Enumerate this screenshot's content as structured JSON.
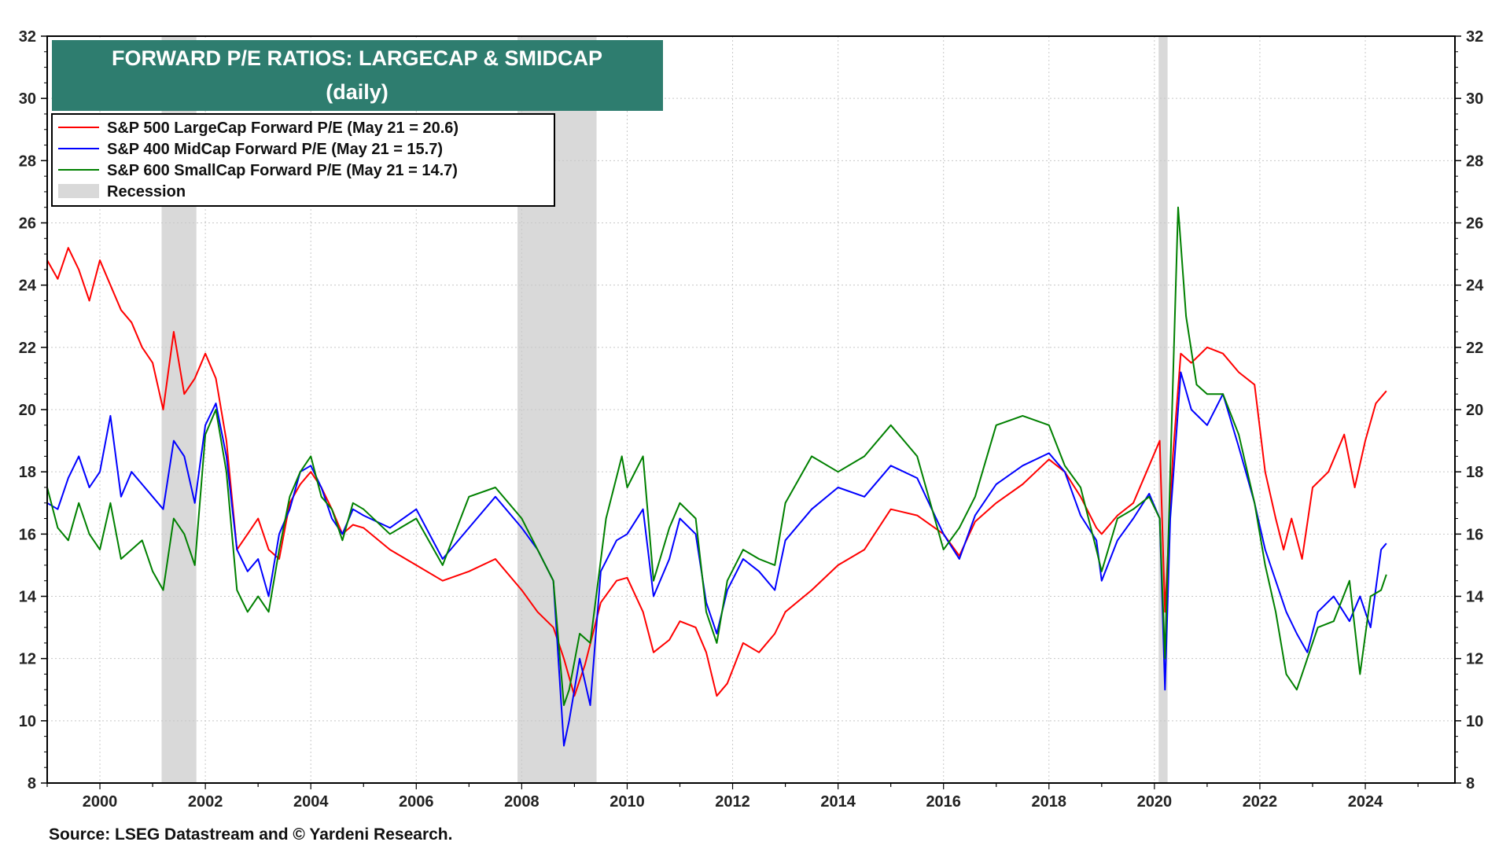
{
  "chart_data": {
    "type": "line",
    "title": "FORWARD P/E RATIOS: LARGECAP & SMIDCAP",
    "subtitle": "(daily)",
    "source": "Source: LSEG Datastream and © Yardeni Research.",
    "xlim": [
      1999.0,
      2025.7
    ],
    "ylim": [
      8,
      32
    ],
    "grid": true,
    "legend_position": "top-left",
    "y_ticks": [
      8,
      10,
      12,
      14,
      16,
      18,
      20,
      22,
      24,
      26,
      28,
      30,
      32
    ],
    "x_ticks": [
      2000,
      2002,
      2004,
      2006,
      2008,
      2010,
      2012,
      2014,
      2016,
      2018,
      2020,
      2022,
      2024
    ],
    "x_tick_labels": [
      "2000",
      "2002",
      "2004",
      "2006",
      "2008",
      "2010",
      "2012",
      "2014",
      "2016",
      "2018",
      "2020",
      "2022",
      "2024"
    ],
    "title_bg_color": "#2e7d6f",
    "recessions": [
      {
        "start": 2001.17,
        "end": 2001.83
      },
      {
        "start": 2007.92,
        "end": 2009.42
      },
      {
        "start": 2020.08,
        "end": 2020.25
      }
    ],
    "recession_color": "#d9d9d9",
    "legend": [
      {
        "label": "S&P 500 LargeCap Forward P/E (May 21 = 20.6)",
        "color": "#ff0000",
        "kind": "line"
      },
      {
        "label": "S&P 400 MidCap Forward P/E (May 21 = 15.7)",
        "color": "#0000ff",
        "kind": "line"
      },
      {
        "label": "S&P 600 SmallCap Forward P/E (May 21 = 14.7)",
        "color": "#008000",
        "kind": "line"
      },
      {
        "label": "Recession",
        "color": "#d9d9d9",
        "kind": "box"
      }
    ],
    "series": [
      {
        "name": "S&P 500 LargeCap Forward P/E",
        "color": "#ff0000",
        "x": [
          1999.0,
          1999.2,
          1999.4,
          1999.6,
          1999.8,
          2000.0,
          2000.2,
          2000.4,
          2000.6,
          2000.8,
          2001.0,
          2001.2,
          2001.4,
          2001.6,
          2001.8,
          2002.0,
          2002.2,
          2002.4,
          2002.6,
          2002.8,
          2003.0,
          2003.2,
          2003.4,
          2003.6,
          2003.8,
          2004.0,
          2004.2,
          2004.4,
          2004.6,
          2004.8,
          2005.0,
          2005.5,
          2006.0,
          2006.5,
          2007.0,
          2007.5,
          2008.0,
          2008.3,
          2008.6,
          2008.8,
          2009.0,
          2009.2,
          2009.5,
          2009.8,
          2010.0,
          2010.3,
          2010.5,
          2010.8,
          2011.0,
          2011.3,
          2011.5,
          2011.7,
          2011.9,
          2012.2,
          2012.5,
          2012.8,
          2013.0,
          2013.5,
          2014.0,
          2014.5,
          2015.0,
          2015.5,
          2016.0,
          2016.3,
          2016.6,
          2017.0,
          2017.5,
          2018.0,
          2018.3,
          2018.6,
          2018.9,
          2019.0,
          2019.3,
          2019.6,
          2019.9,
          2020.1,
          2020.2,
          2020.35,
          2020.5,
          2020.7,
          2021.0,
          2021.3,
          2021.6,
          2021.9,
          2022.1,
          2022.3,
          2022.45,
          2022.6,
          2022.8,
          2023.0,
          2023.3,
          2023.6,
          2023.8,
          2024.0,
          2024.2,
          2024.4
        ],
        "values": [
          24.8,
          24.2,
          25.2,
          24.5,
          23.5,
          24.8,
          24.0,
          23.2,
          22.8,
          22.0,
          21.5,
          20.0,
          22.5,
          20.5,
          21.0,
          21.8,
          21.0,
          19.0,
          15.5,
          16.0,
          16.5,
          15.5,
          15.2,
          17.0,
          17.6,
          18.0,
          17.5,
          16.8,
          16.0,
          16.3,
          16.2,
          15.5,
          15.0,
          14.5,
          14.8,
          15.2,
          14.2,
          13.5,
          13.0,
          12.0,
          10.8,
          11.8,
          13.8,
          14.5,
          14.6,
          13.5,
          12.2,
          12.6,
          13.2,
          13.0,
          12.2,
          10.8,
          11.2,
          12.5,
          12.2,
          12.8,
          13.5,
          14.2,
          15.0,
          15.5,
          16.8,
          16.6,
          16.0,
          15.3,
          16.4,
          17.0,
          17.6,
          18.4,
          18.0,
          17.2,
          16.2,
          16.0,
          16.6,
          17.0,
          18.2,
          19.0,
          13.5,
          18.5,
          21.8,
          21.5,
          22.0,
          21.8,
          21.2,
          20.8,
          18.0,
          16.5,
          15.5,
          16.5,
          15.2,
          17.5,
          18.0,
          19.2,
          17.5,
          19.0,
          20.2,
          20.6
        ]
      },
      {
        "name": "S&P 400 MidCap Forward P/E",
        "color": "#0000ff",
        "x": [
          1999.0,
          1999.2,
          1999.4,
          1999.6,
          1999.8,
          2000.0,
          2000.2,
          2000.4,
          2000.6,
          2000.8,
          2001.0,
          2001.2,
          2001.4,
          2001.6,
          2001.8,
          2002.0,
          2002.2,
          2002.4,
          2002.6,
          2002.8,
          2003.0,
          2003.2,
          2003.4,
          2003.6,
          2003.8,
          2004.0,
          2004.2,
          2004.4,
          2004.6,
          2004.8,
          2005.0,
          2005.5,
          2006.0,
          2006.5,
          2007.0,
          2007.5,
          2008.0,
          2008.3,
          2008.6,
          2008.8,
          2008.9,
          2009.1,
          2009.3,
          2009.5,
          2009.8,
          2010.0,
          2010.3,
          2010.5,
          2010.8,
          2011.0,
          2011.3,
          2011.5,
          2011.7,
          2011.9,
          2012.2,
          2012.5,
          2012.8,
          2013.0,
          2013.5,
          2014.0,
          2014.5,
          2015.0,
          2015.5,
          2016.0,
          2016.3,
          2016.6,
          2017.0,
          2017.5,
          2018.0,
          2018.3,
          2018.6,
          2018.9,
          2019.0,
          2019.3,
          2019.6,
          2019.9,
          2020.1,
          2020.2,
          2020.3,
          2020.5,
          2020.7,
          2021.0,
          2021.3,
          2021.6,
          2021.9,
          2022.1,
          2022.3,
          2022.5,
          2022.7,
          2022.9,
          2023.1,
          2023.4,
          2023.7,
          2023.9,
          2024.1,
          2024.3,
          2024.4
        ],
        "values": [
          17.0,
          16.8,
          17.8,
          18.5,
          17.5,
          18.0,
          19.8,
          17.2,
          18.0,
          17.6,
          17.2,
          16.8,
          19.0,
          18.5,
          17.0,
          19.5,
          20.2,
          18.5,
          15.5,
          14.8,
          15.2,
          14.0,
          16.0,
          16.8,
          18.0,
          18.2,
          17.5,
          16.5,
          16.0,
          16.8,
          16.6,
          16.2,
          16.8,
          15.2,
          16.2,
          17.2,
          16.2,
          15.5,
          14.5,
          9.2,
          10.0,
          12.0,
          10.5,
          14.8,
          15.8,
          16.0,
          16.8,
          14.0,
          15.2,
          16.5,
          16.0,
          13.8,
          12.8,
          14.2,
          15.2,
          14.8,
          14.2,
          15.8,
          16.8,
          17.5,
          17.2,
          18.2,
          17.8,
          16.0,
          15.2,
          16.6,
          17.6,
          18.2,
          18.6,
          18.0,
          16.6,
          15.8,
          14.5,
          15.8,
          16.5,
          17.3,
          16.5,
          11.0,
          16.5,
          21.2,
          20.0,
          19.5,
          20.5,
          18.8,
          17.0,
          15.5,
          14.5,
          13.5,
          12.8,
          12.2,
          13.5,
          14.0,
          13.2,
          14.0,
          13.0,
          15.5,
          15.7
        ]
      },
      {
        "name": "S&P 600 SmallCap Forward P/E",
        "color": "#008000",
        "x": [
          1999.0,
          1999.2,
          1999.4,
          1999.6,
          1999.8,
          2000.0,
          2000.2,
          2000.4,
          2000.6,
          2000.8,
          2001.0,
          2001.2,
          2001.4,
          2001.6,
          2001.8,
          2002.0,
          2002.2,
          2002.4,
          2002.6,
          2002.8,
          2003.0,
          2003.2,
          2003.4,
          2003.6,
          2003.8,
          2004.0,
          2004.2,
          2004.4,
          2004.6,
          2004.8,
          2005.0,
          2005.5,
          2006.0,
          2006.5,
          2007.0,
          2007.5,
          2008.0,
          2008.3,
          2008.6,
          2008.8,
          2008.9,
          2009.1,
          2009.3,
          2009.6,
          2009.9,
          2010.0,
          2010.3,
          2010.5,
          2010.8,
          2011.0,
          2011.3,
          2011.5,
          2011.7,
          2011.9,
          2012.2,
          2012.5,
          2012.8,
          2013.0,
          2013.5,
          2014.0,
          2014.5,
          2015.0,
          2015.5,
          2016.0,
          2016.3,
          2016.6,
          2017.0,
          2017.5,
          2018.0,
          2018.3,
          2018.6,
          2018.9,
          2019.0,
          2019.3,
          2019.6,
          2019.9,
          2020.1,
          2020.2,
          2020.3,
          2020.45,
          2020.6,
          2020.8,
          2021.0,
          2021.3,
          2021.6,
          2021.9,
          2022.1,
          2022.3,
          2022.5,
          2022.7,
          2022.9,
          2023.1,
          2023.4,
          2023.7,
          2023.9,
          2024.1,
          2024.3,
          2024.4
        ],
        "values": [
          17.5,
          16.2,
          15.8,
          17.0,
          16.0,
          15.5,
          17.0,
          15.2,
          15.5,
          15.8,
          14.8,
          14.2,
          16.5,
          16.0,
          15.0,
          19.2,
          20.0,
          18.0,
          14.2,
          13.5,
          14.0,
          13.5,
          15.5,
          17.2,
          18.0,
          18.5,
          17.2,
          16.8,
          15.8,
          17.0,
          16.8,
          16.0,
          16.5,
          15.0,
          17.2,
          17.5,
          16.5,
          15.5,
          14.5,
          10.5,
          11.0,
          12.8,
          12.5,
          16.5,
          18.5,
          17.5,
          18.5,
          14.5,
          16.2,
          17.0,
          16.5,
          13.5,
          12.5,
          14.5,
          15.5,
          15.2,
          15.0,
          17.0,
          18.5,
          18.0,
          18.5,
          19.5,
          18.5,
          15.5,
          16.2,
          17.2,
          19.5,
          19.8,
          19.5,
          18.2,
          17.5,
          15.5,
          14.8,
          16.5,
          16.8,
          17.2,
          16.5,
          12.0,
          18.0,
          26.5,
          23.0,
          20.8,
          20.5,
          20.5,
          19.2,
          17.0,
          15.0,
          13.5,
          11.5,
          11.0,
          12.0,
          13.0,
          13.2,
          14.5,
          11.5,
          14.0,
          14.2,
          14.7
        ]
      }
    ]
  }
}
